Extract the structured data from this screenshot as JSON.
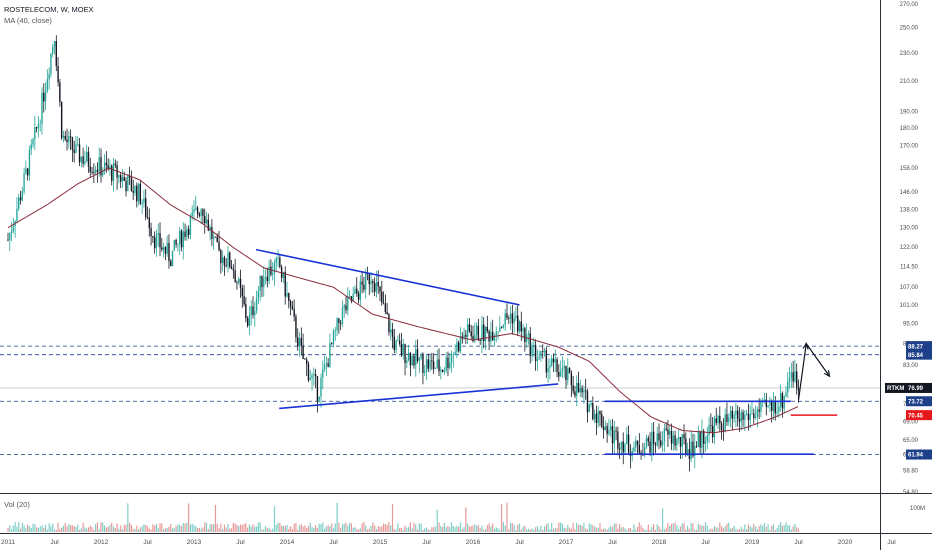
{
  "header": {
    "title": "ROSTELECOM, W, MOEX",
    "indicator": "MA (40, close)"
  },
  "volume_panel": {
    "label": "Vol (20)",
    "axis_label": "100M"
  },
  "colors": {
    "up": "#26a69a",
    "down": "#131722",
    "ma": "#8a2b3a",
    "trendline": "#1a33d6",
    "support_red": "#e8171e",
    "dashed_level": "#1e3f8a",
    "price_tag": "#131722",
    "level_tag": "#1e3f8a",
    "red_tag": "#e8171e"
  },
  "chart_data": {
    "type": "candlestick",
    "title": "ROSTELECOM, W, MOEX",
    "y_scale": "log",
    "ylim": [
      54.8,
      270
    ],
    "y_ticks": [
      "270.00",
      "250.00",
      "230.00",
      "210.00",
      "190.00",
      "180.00",
      "170.00",
      "158.00",
      "146.00",
      "138.00",
      "130.00",
      "122.00",
      "114.50",
      "107.00",
      "101.00",
      "95.00",
      "89.00",
      "83.00",
      "77.00",
      "73.00",
      "69.00",
      "65.00",
      "61.90",
      "58.80",
      "54.80"
    ],
    "x_ticks": [
      "2011",
      "Jul",
      "2012",
      "Jul",
      "2013",
      "Jul",
      "2014",
      "Jul",
      "2015",
      "Jul",
      "2016",
      "Jul",
      "2017",
      "Jul",
      "2018",
      "Jul",
      "2019",
      "Jul",
      "2020",
      "Jul"
    ],
    "price_path": [
      [
        "2011-01",
        125
      ],
      [
        "2011-03",
        150
      ],
      [
        "2011-05",
        185
      ],
      [
        "2011-07",
        245
      ],
      [
        "2011-08",
        175
      ],
      [
        "2011-10",
        165
      ],
      [
        "2011-12",
        160
      ],
      [
        "2012-03",
        155
      ],
      [
        "2012-06",
        145
      ],
      [
        "2012-08",
        125
      ],
      [
        "2012-10",
        118
      ],
      [
        "2012-12",
        130
      ],
      [
        "2013-02",
        140
      ],
      [
        "2013-04",
        120
      ],
      [
        "2013-06",
        115
      ],
      [
        "2013-08",
        95
      ],
      [
        "2013-10",
        112
      ],
      [
        "2013-12",
        115
      ],
      [
        "2014-03",
        85
      ],
      [
        "2014-05",
        76
      ],
      [
        "2014-08",
        98
      ],
      [
        "2014-12",
        112
      ],
      [
        "2015-03",
        88
      ],
      [
        "2015-06",
        84
      ],
      [
        "2015-09",
        82
      ],
      [
        "2015-12",
        92
      ],
      [
        "2016-03",
        92
      ],
      [
        "2016-06",
        98
      ],
      [
        "2016-09",
        86
      ],
      [
        "2017-01",
        80
      ],
      [
        "2017-04",
        73
      ],
      [
        "2017-07",
        66
      ],
      [
        "2017-10",
        63
      ],
      [
        "2018-02",
        66
      ],
      [
        "2018-05",
        63
      ],
      [
        "2018-08",
        68
      ],
      [
        "2018-12",
        70
      ],
      [
        "2019-03",
        72
      ],
      [
        "2019-05",
        74
      ],
      [
        "2019-06",
        82
      ],
      [
        "2019-07",
        77
      ]
    ],
    "ma40_path": [
      [
        "2011-01",
        130
      ],
      [
        "2011-06",
        140
      ],
      [
        "2011-10",
        150
      ],
      [
        "2012-02",
        158
      ],
      [
        "2012-06",
        152
      ],
      [
        "2012-10",
        140
      ],
      [
        "2013-02",
        132
      ],
      [
        "2013-06",
        122
      ],
      [
        "2013-10",
        114
      ],
      [
        "2014-03",
        110
      ],
      [
        "2014-07",
        107
      ],
      [
        "2014-12",
        98
      ],
      [
        "2015-06",
        94
      ],
      [
        "2016-01",
        90
      ],
      [
        "2016-06",
        92
      ],
      [
        "2016-12",
        88
      ],
      [
        "2017-04",
        84
      ],
      [
        "2017-08",
        76
      ],
      [
        "2017-12",
        70
      ],
      [
        "2018-04",
        67
      ],
      [
        "2018-08",
        66.5
      ],
      [
        "2018-12",
        67.5
      ],
      [
        "2019-04",
        70
      ],
      [
        "2019-07",
        72.5
      ]
    ],
    "annotations": {
      "upper_trendline": {
        "from": [
          "2013-09",
          121
        ],
        "to": [
          "2016-07",
          101
        ]
      },
      "lower_trendline": {
        "from": [
          "2013-12",
          72
        ],
        "to": [
          "2016-12",
          78
        ]
      },
      "range_top": {
        "from": [
          "2017-06",
          73.7
        ],
        "to": [
          "2019-06",
          73.7
        ]
      },
      "range_bottom": {
        "from": [
          "2017-06",
          62
        ],
        "to": [
          "2019-09",
          62
        ]
      },
      "red_support": {
        "from": [
          "2019-06",
          70.45
        ],
        "to": [
          "2019-12",
          70.45
        ]
      },
      "projection_arrow": [
        [
          "2019-07",
          74
        ],
        [
          "2019-08",
          89
        ],
        [
          "2019-11",
          80
        ]
      ],
      "dashed_levels": [
        88.27,
        85.84,
        73.72,
        61.94
      ],
      "price_line": 76.99
    },
    "price_labels": [
      {
        "text": "88.27",
        "value": 88.27,
        "style": "level"
      },
      {
        "text": "85.84",
        "value": 85.84,
        "style": "level"
      },
      {
        "text": "73.72",
        "value": 73.72,
        "style": "level"
      },
      {
        "text": "70.45",
        "value": 70.45,
        "style": "red"
      },
      {
        "text": "61.94",
        "value": 61.94,
        "style": "level"
      }
    ],
    "symbol_label": {
      "symbol": "RTKM",
      "value": "76.99"
    },
    "legend": "none"
  }
}
